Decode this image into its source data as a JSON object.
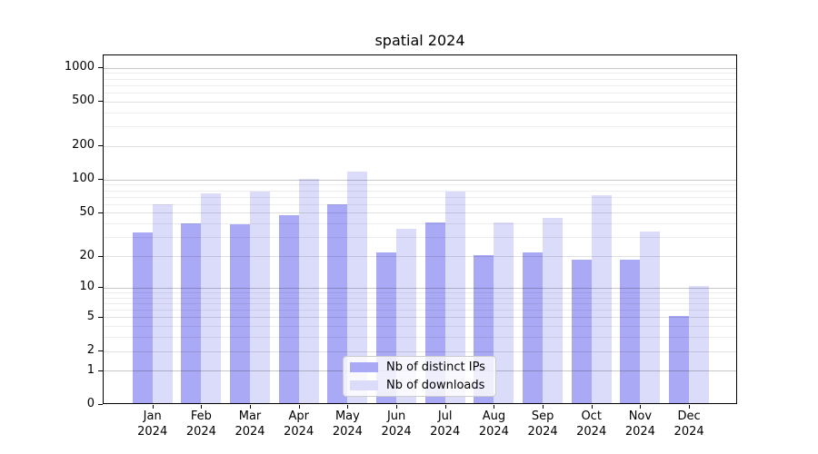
{
  "chart_data": {
    "type": "bar",
    "title": "spatial 2024",
    "months": [
      "Jan",
      "Feb",
      "Mar",
      "Apr",
      "May",
      "Jun",
      "Jul",
      "Aug",
      "Sep",
      "Oct",
      "Nov",
      "Dec"
    ],
    "year": "2024",
    "categories": [
      "Jan 2024",
      "Feb 2024",
      "Mar 2024",
      "Apr 2024",
      "May 2024",
      "Jun 2024",
      "Jul 2024",
      "Aug 2024",
      "Sep 2024",
      "Oct 2024",
      "Nov 2024",
      "Dec 2024"
    ],
    "series": [
      {
        "name": "Nb of distinct IPs",
        "color": "#a9a9f5",
        "values": [
          32,
          39,
          38,
          46,
          58,
          21,
          40,
          20,
          21,
          18,
          18,
          5
        ]
      },
      {
        "name": "Nb of downloads",
        "color": "#dbdbfa",
        "values": [
          58,
          73,
          75,
          98,
          115,
          35,
          76,
          40,
          44,
          70,
          33,
          10
        ]
      }
    ],
    "xlabel": "",
    "ylabel": "",
    "yscale": "log1p",
    "yticks": [
      0,
      1,
      2,
      5,
      10,
      20,
      50,
      100,
      200,
      500,
      1000
    ],
    "ylim": [
      0,
      1300
    ],
    "grid": true,
    "legend_position": "lower center"
  },
  "colors": {
    "bar_ips": "#a9a9f5",
    "bar_downloads": "#dbdbfa",
    "grid_decade": "rgba(0,0,0,0.22)",
    "grid_labeled": "rgba(0,0,0,0.12)",
    "grid_minor": "rgba(0,0,0,0.07)",
    "spine": "#000000",
    "text": "#000000",
    "legend_border": "#cccccc",
    "legend_bg": "rgba(255,255,255,0.8)"
  }
}
